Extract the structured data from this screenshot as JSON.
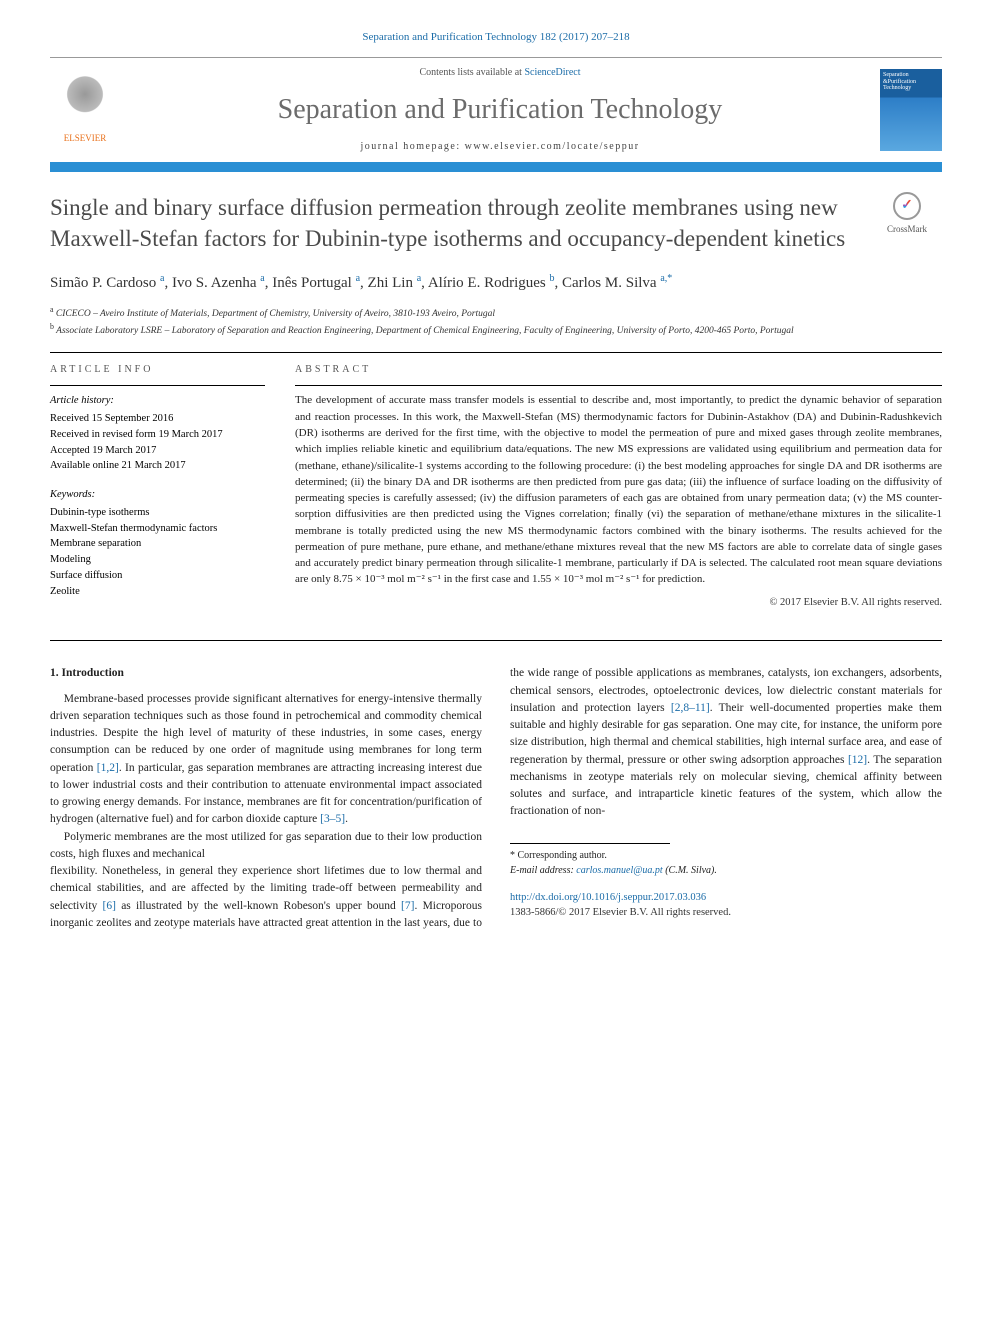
{
  "citation": "Separation and Purification Technology 182 (2017) 207–218",
  "banner": {
    "contents_prefix": "Contents lists available at ",
    "contents_link": "ScienceDirect",
    "journal_name": "Separation and Purification Technology",
    "homepage_prefix": "journal homepage: ",
    "homepage_url": "www.elsevier.com/locate/seppur",
    "publisher_name": "ELSEVIER",
    "cover_text": "Separation &Purification Technology"
  },
  "crossmark_label": "CrossMark",
  "title": "Single and binary surface diffusion permeation through zeolite membranes using new Maxwell-Stefan factors for Dubinin-type isotherms and occupancy-dependent kinetics",
  "authors_html": "Simão P. Cardoso <sup>a</sup>, Ivo S. Azenha <sup>a</sup>, Inês Portugal <sup>a</sup>, Zhi Lin <sup>a</sup>, Alírio E. Rodrigues <sup>b</sup>, Carlos M. Silva <sup>a,*</sup>",
  "affiliations": [
    {
      "sup": "a",
      "text": "CICECO – Aveiro Institute of Materials, Department of Chemistry, University of Aveiro, 3810-193 Aveiro, Portugal"
    },
    {
      "sup": "b",
      "text": "Associate Laboratory LSRE – Laboratory of Separation and Reaction Engineering, Department of Chemical Engineering, Faculty of Engineering, University of Porto, 4200-465 Porto, Portugal"
    }
  ],
  "info_heading": "article info",
  "abstract_heading": "abstract",
  "history": {
    "label": "Article history:",
    "items": [
      "Received 15 September 2016",
      "Received in revised form 19 March 2017",
      "Accepted 19 March 2017",
      "Available online 21 March 2017"
    ]
  },
  "keywords": {
    "label": "Keywords:",
    "items": [
      "Dubinin-type isotherms",
      "Maxwell-Stefan thermodynamic factors",
      "Membrane separation",
      "Modeling",
      "Surface diffusion",
      "Zeolite"
    ]
  },
  "abstract": "The development of accurate mass transfer models is essential to describe and, most importantly, to predict the dynamic behavior of separation and reaction processes. In this work, the Maxwell-Stefan (MS) thermodynamic factors for Dubinin-Astakhov (DA) and Dubinin-Radushkevich (DR) isotherms are derived for the first time, with the objective to model the permeation of pure and mixed gases through zeolite membranes, which implies reliable kinetic and equilibrium data/equations. The new MS expressions are validated using equilibrium and permeation data for (methane, ethane)/silicalite-1 systems according to the following procedure: (i) the best modeling approaches for single DA and DR isotherms are determined; (ii) the binary DA and DR isotherms are then predicted from pure gas data; (iii) the influence of surface loading on the diffusivity of permeating species is carefully assessed; (iv) the diffusion parameters of each gas are obtained from unary permeation data; (v) the MS counter-sorption diffusivities are then predicted using the Vignes correlation; finally (vi) the separation of methane/ethane mixtures in the silicalite-1 membrane is totally predicted using the new MS thermodynamic factors combined with the binary isotherms. The results achieved for the permeation of pure methane, pure ethane, and methane/ethane mixtures reveal that the new MS factors are able to correlate data of single gases and accurately predict binary permeation through silicalite-1 membrane, particularly if DA is selected. The calculated root mean square deviations are only 8.75 × 10⁻³ mol m⁻² s⁻¹ in the first case and 1.55 × 10⁻³ mol m⁻² s⁻¹ for prediction.",
  "copyright": "© 2017 Elsevier B.V. All rights reserved.",
  "section1": {
    "heading": "1. Introduction",
    "p1": "Membrane-based processes provide significant alternatives for energy-intensive thermally driven separation techniques such as those found in petrochemical and commodity chemical industries. Despite the high level of maturity of these industries, in some cases, energy consumption can be reduced by one order of magnitude using membranes for long term operation [1,2]. In particular, gas separation membranes are attracting increasing interest due to lower industrial costs and their contribution to attenuate environmental impact associated to growing energy demands. For instance, membranes are fit for concentration/purification of hydrogen (alternative fuel) and for carbon dioxide capture [3–5].",
    "p2": "Polymeric membranes are the most utilized for gas separation due to their low production costs, high fluxes and mechanical",
    "p3": "flexibility. Nonetheless, in general they experience short lifetimes due to low thermal and chemical stabilities, and are affected by the limiting trade-off between permeability and selectivity [6] as illustrated by the well-known Robeson's upper bound [7]. Microporous inorganic zeolites and zeotype materials have attracted great attention in the last years, due to the wide range of possible applications as membranes, catalysts, ion exchangers, adsorbents, chemical sensors, electrodes, optoelectronic devices, low dielectric constant materials for insulation and protection layers [2,8–11]. Their well-documented properties make them suitable and highly desirable for gas separation. One may cite, for instance, the uniform pore size distribution, high thermal and chemical stabilities, high internal surface area, and ease of regeneration by thermal, pressure or other swing adsorption approaches [12]. The separation mechanisms in zeotype materials rely on molecular sieving, chemical affinity between solutes and surface, and intraparticle kinetic features of the system, which allow the fractionation of non-"
  },
  "refs": {
    "r12": "[1,2]",
    "r35": "[3–5]",
    "r6": "[6]",
    "r7": "[7]",
    "r2811": "[2,8–11]",
    "r12b": "[12]"
  },
  "footer": {
    "corr_label": "* Corresponding author.",
    "email_label": "E-mail address: ",
    "email": "carlos.manuel@ua.pt",
    "email_suffix": " (C.M. Silva).",
    "doi": "http://dx.doi.org/10.1016/j.seppur.2017.03.036",
    "issn": "1383-5866/© 2017 Elsevier B.V. All rights reserved."
  },
  "colors": {
    "link": "#1b6ca8",
    "bar": "#2a8fd4",
    "title_gray": "#4a4a4a",
    "elsevier_orange": "#e9711c"
  }
}
